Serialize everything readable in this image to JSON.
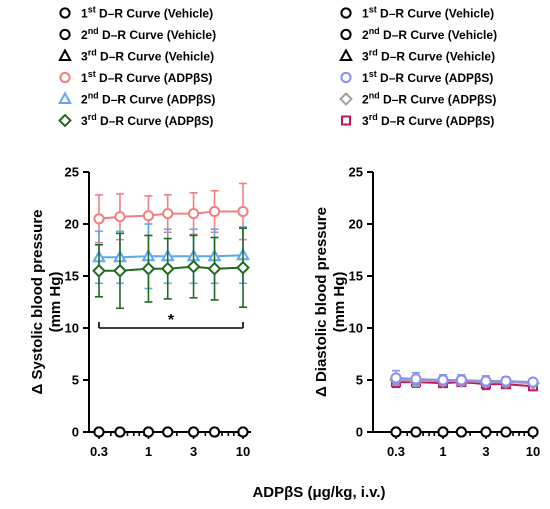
{
  "chart_data": [
    {
      "type": "line",
      "panel": "left",
      "ylabel": "Δ Systolic blood pressure",
      "ylabel_unit": "(mm Hg)",
      "xlabel": "ADPβS (μg/kg, i.v.)",
      "xscale": "log",
      "x": [
        0.3,
        0.5,
        1,
        1.6,
        3,
        5,
        10
      ],
      "xticks": [
        0.3,
        1,
        3,
        10
      ],
      "xtick_labels": [
        "0.3",
        "1",
        "3",
        "10"
      ],
      "yticks": [
        0,
        5,
        10,
        15,
        20,
        25
      ],
      "ytick_labels": [
        "0",
        "5",
        "10",
        "15",
        "20",
        "25"
      ],
      "ylim": [
        0,
        25
      ],
      "annotation": "*",
      "legend": [
        {
          "sup": "st",
          "ord": "1",
          "text": "D–R Curve (Vehicle)",
          "color": "#000000",
          "marker": "circle",
          "filled": false
        },
        {
          "sup": "nd",
          "ord": "2",
          "text": "D–R Curve (Vehicle)",
          "color": "#000000",
          "marker": "circle",
          "filled": false
        },
        {
          "sup": "rd",
          "ord": "3",
          "text": "D–R Curve (Vehicle)",
          "color": "#000000",
          "marker": "triangle",
          "filled": false
        },
        {
          "sup": "st",
          "ord": "1",
          "text": "D–R Curve (ADPβS)",
          "color": "#f08080",
          "marker": "circle",
          "filled": false
        },
        {
          "sup": "nd",
          "ord": "2",
          "text": "D–R Curve (ADPβS)",
          "color": "#5fa8ee",
          "marker": "triangle",
          "filled": false
        },
        {
          "sup": "rd",
          "ord": "3",
          "text": "D–R Curve (ADPβS)",
          "color": "#1f6b1f",
          "marker": "diamond",
          "filled": false
        }
      ],
      "series": [
        {
          "color": "#000000",
          "marker": "circle",
          "values": [
            0,
            0,
            0,
            0,
            0,
            0,
            0
          ],
          "err": [
            0,
            0,
            0,
            0,
            0,
            0,
            0
          ]
        },
        {
          "color": "#f08080",
          "marker": "circle",
          "values": [
            20.5,
            20.7,
            20.8,
            21.0,
            21.0,
            21.2,
            21.2
          ],
          "err": [
            2.3,
            2.2,
            1.9,
            1.8,
            2.0,
            2.0,
            2.7
          ]
        },
        {
          "color": "#5fa8ee",
          "marker": "triangle",
          "values": [
            16.8,
            16.8,
            16.9,
            16.9,
            16.9,
            16.9,
            17.0
          ],
          "err": [
            2.5,
            2.5,
            3.1,
            2.6,
            2.6,
            2.6,
            2.7
          ]
        },
        {
          "color": "#1f6b1f",
          "marker": "diamond",
          "values": [
            15.5,
            15.5,
            15.7,
            15.7,
            15.9,
            15.7,
            15.8
          ],
          "err": [
            2.5,
            3.6,
            3.2,
            2.9,
            3.0,
            3.0,
            3.8
          ]
        }
      ]
    },
    {
      "type": "line",
      "panel": "right",
      "ylabel": "Δ Diastolic  blood pressure",
      "ylabel_unit": "(mm Hg)",
      "xscale": "log",
      "x": [
        0.3,
        0.5,
        1,
        1.6,
        3,
        5,
        10
      ],
      "xticks": [
        0.3,
        1,
        3,
        10
      ],
      "xtick_labels": [
        "0.3",
        "1",
        "3",
        "10"
      ],
      "yticks": [
        0,
        5,
        10,
        15,
        20,
        25
      ],
      "ytick_labels": [
        "0",
        "5",
        "10",
        "15",
        "20",
        "25"
      ],
      "ylim": [
        0,
        25
      ],
      "legend": [
        {
          "sup": "st",
          "ord": "1",
          "text": "D–R Curve (Vehicle)",
          "color": "#000000",
          "marker": "circle",
          "filled": false
        },
        {
          "sup": "nd",
          "ord": "2",
          "text": "D–R Curve (Vehicle)",
          "color": "#000000",
          "marker": "circle",
          "filled": false
        },
        {
          "sup": "rd",
          "ord": "3",
          "text": "D–R Curve (Vehicle)",
          "color": "#000000",
          "marker": "triangle",
          "filled": false
        },
        {
          "sup": "st",
          "ord": "1",
          "text": "D–R Curve (ADPβS)",
          "color": "#8b8ff0",
          "marker": "circle",
          "filled": false
        },
        {
          "sup": "nd",
          "ord": "2",
          "text": "D–R Curve (ADPβS)",
          "color": "#a0a0a0",
          "marker": "diamond",
          "filled": false
        },
        {
          "sup": "rd",
          "ord": "3",
          "text": "D–R Curve (ADPβS)",
          "color": "#c2185b",
          "marker": "square",
          "filled": false
        }
      ],
      "series": [
        {
          "color": "#000000",
          "marker": "circle",
          "values": [
            0,
            0,
            0,
            0,
            0,
            0,
            0
          ],
          "err": [
            0,
            0,
            0,
            0,
            0,
            0,
            0
          ]
        },
        {
          "color": "#c2185b",
          "marker": "square",
          "values": [
            4.8,
            4.8,
            4.7,
            4.8,
            4.6,
            4.6,
            4.4
          ],
          "err": [
            0.5,
            0.5,
            0.4,
            0.4,
            0.5,
            0.4,
            0.4
          ]
        },
        {
          "color": "#a0a0a0",
          "marker": "diamond",
          "values": [
            5.0,
            4.9,
            4.9,
            4.9,
            4.8,
            4.8,
            4.7
          ],
          "err": [
            0.5,
            0.5,
            0.4,
            0.4,
            0.4,
            0.4,
            0.3
          ]
        },
        {
          "color": "#8b8ff0",
          "marker": "circle",
          "values": [
            5.2,
            5.1,
            5.0,
            5.0,
            4.9,
            4.9,
            4.8
          ],
          "err": [
            0.7,
            0.6,
            0.5,
            0.5,
            0.5,
            0.4,
            0.3
          ]
        }
      ]
    }
  ]
}
